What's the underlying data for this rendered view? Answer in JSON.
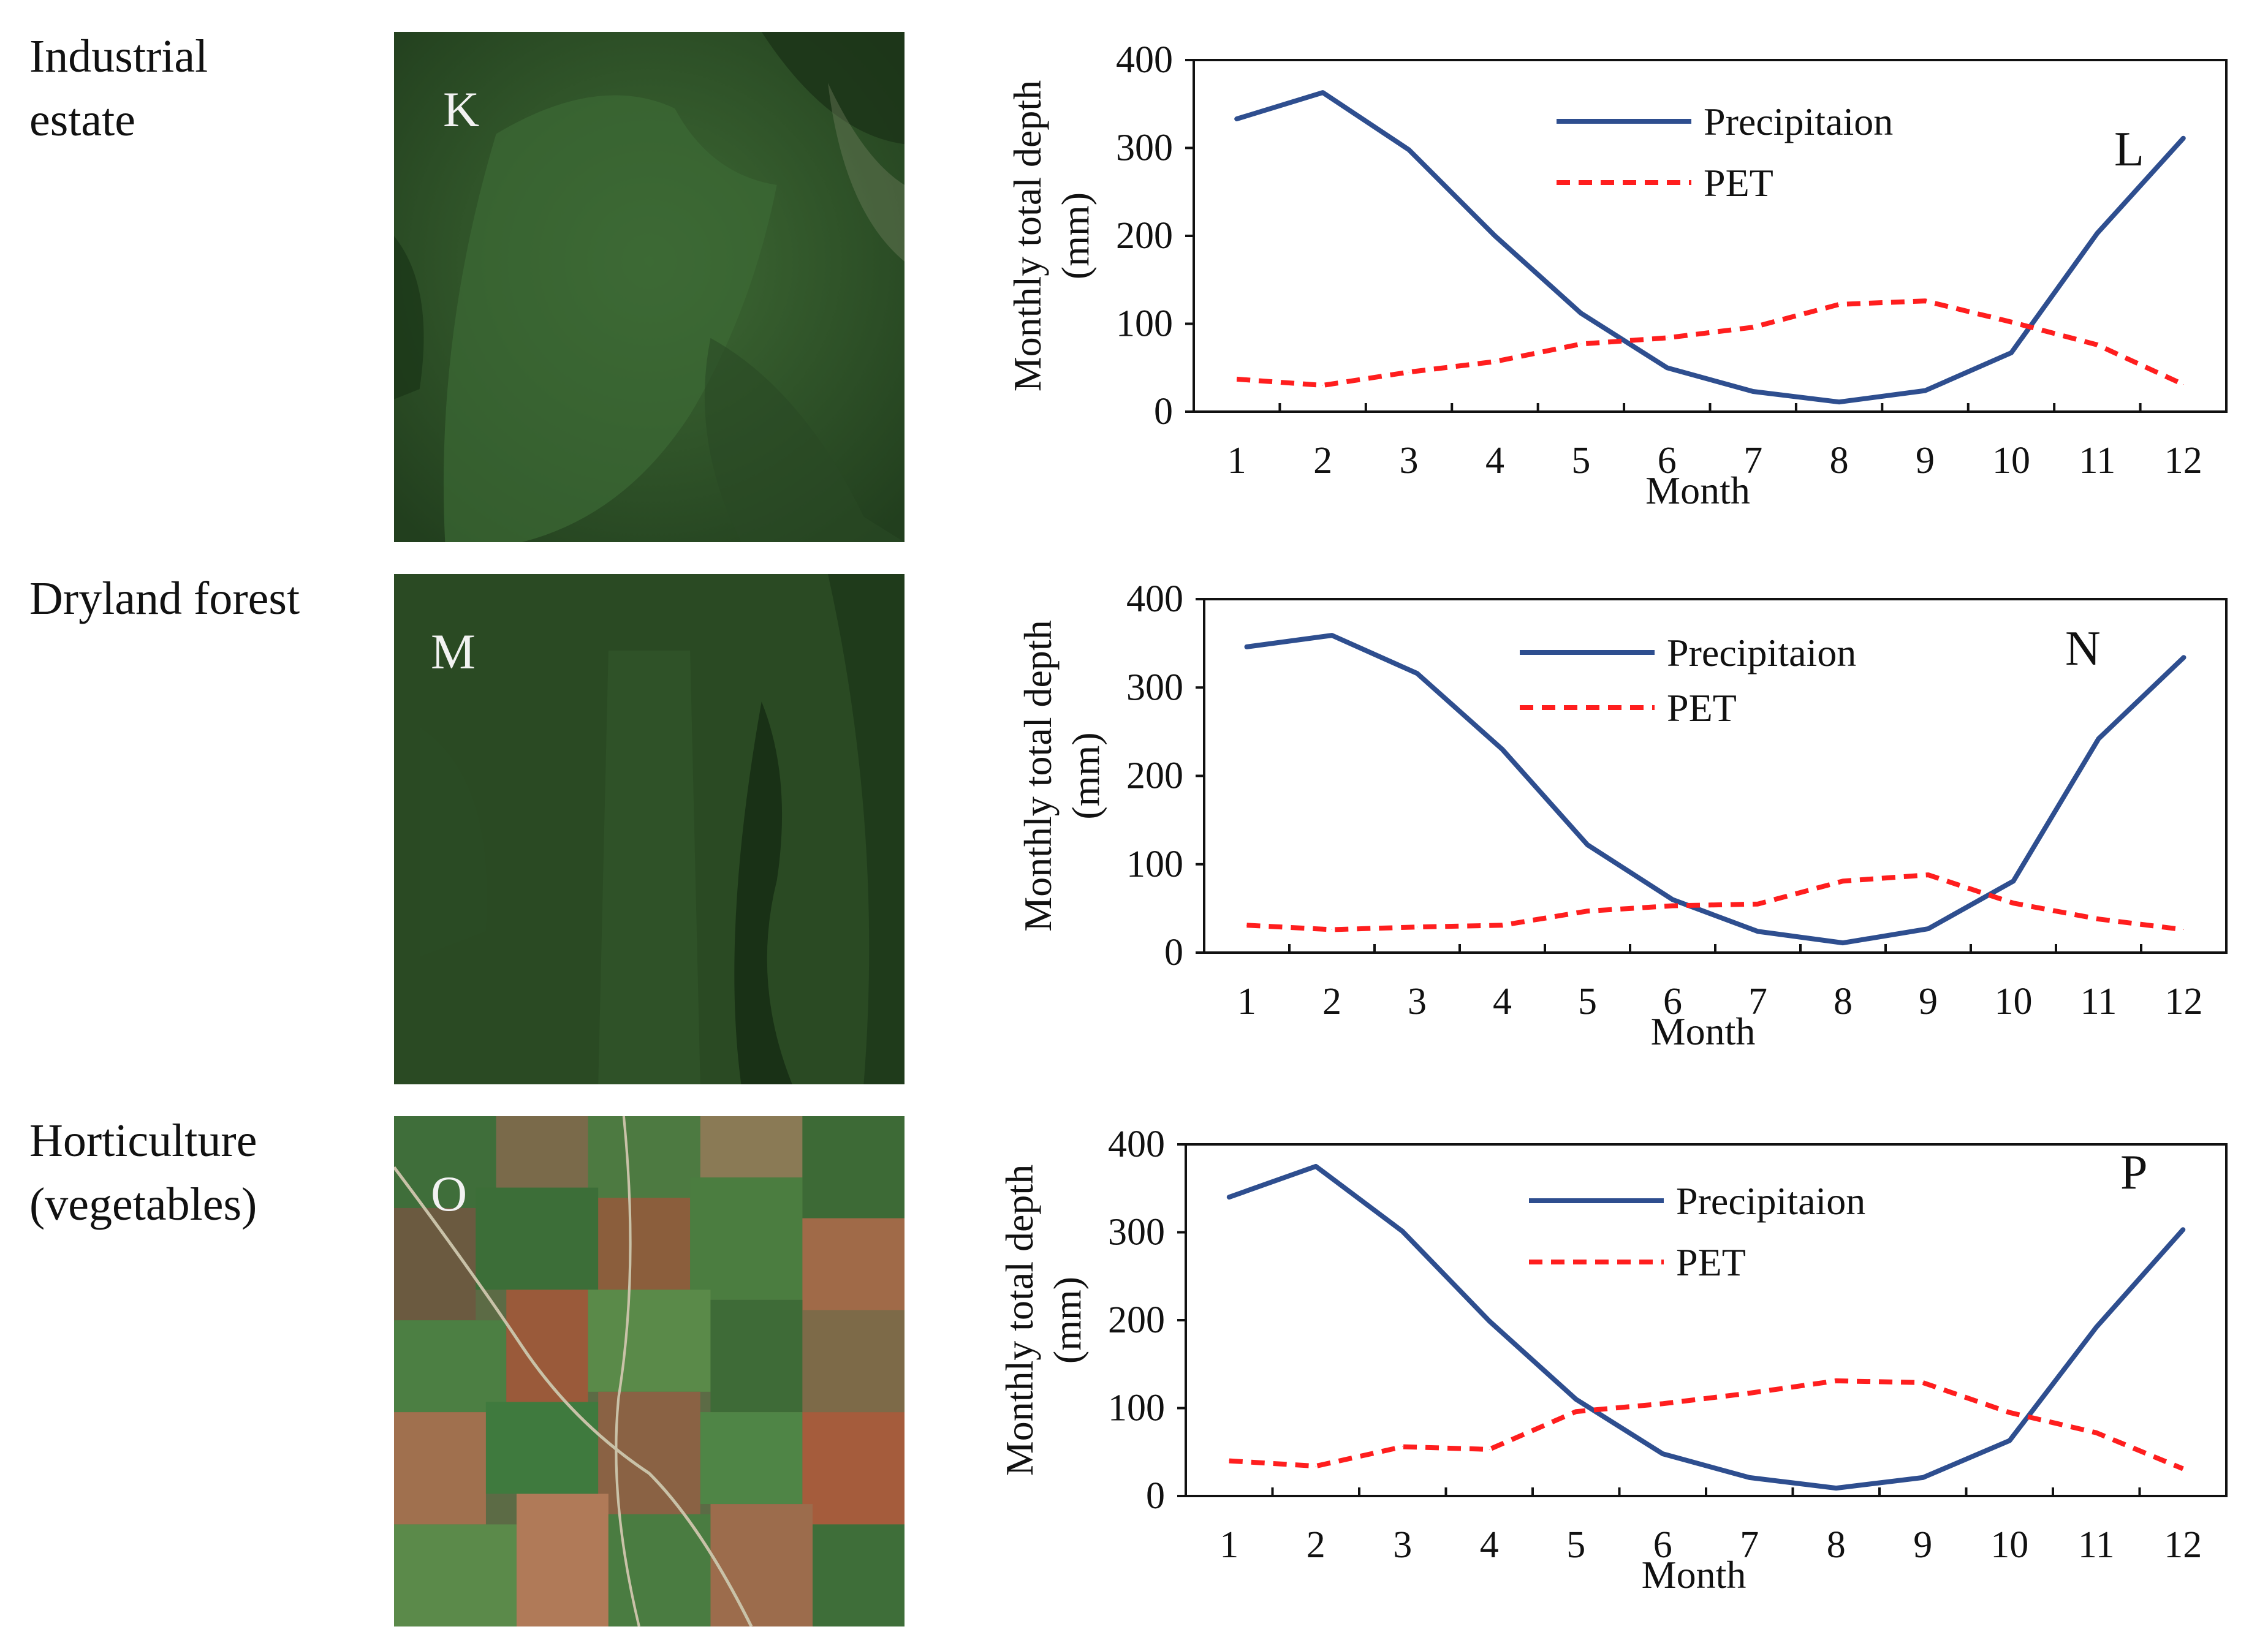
{
  "rows": [
    {
      "label": "Industrial\nestate",
      "image_letter": "K",
      "image_kind": "forest-plantation"
    },
    {
      "label": "Dryland forest",
      "image_letter": "M",
      "image_kind": "dense-forest"
    },
    {
      "label": "Horticulture\n(vegetables)",
      "image_letter": "O",
      "image_kind": "cropland"
    }
  ],
  "chart_data": [
    {
      "type": "line",
      "panel_letter": "L",
      "xlabel": "Month",
      "ylabel": "Monthly total depth (mm)",
      "ylim": [
        0,
        400
      ],
      "yticks": [
        0,
        100,
        200,
        300,
        400
      ],
      "x": [
        1,
        2,
        3,
        4,
        5,
        6,
        7,
        8,
        9,
        10,
        11,
        12
      ],
      "series": [
        {
          "name": "Precipitaion",
          "color": "#2e4e8f",
          "dash": "solid",
          "values": [
            333,
            363,
            298,
            200,
            112,
            50,
            23,
            11,
            24,
            67,
            203,
            311
          ]
        },
        {
          "name": "PET",
          "color": "#ff1e1e",
          "dash": "dashed",
          "values": [
            37,
            30,
            45,
            57,
            77,
            84,
            96,
            122,
            126,
            102,
            76,
            31
          ]
        }
      ]
    },
    {
      "type": "line",
      "panel_letter": "N",
      "xlabel": "Month",
      "ylabel": "Monthly total depth (mm)",
      "ylim": [
        0,
        400
      ],
      "yticks": [
        0,
        100,
        200,
        300,
        400
      ],
      "x": [
        1,
        2,
        3,
        4,
        5,
        6,
        7,
        8,
        9,
        10,
        11,
        12
      ],
      "series": [
        {
          "name": "Precipitaion",
          "color": "#2e4e8f",
          "dash": "solid",
          "values": [
            346,
            359,
            316,
            230,
            122,
            60,
            24,
            11,
            27,
            81,
            242,
            334
          ]
        },
        {
          "name": "PET",
          "color": "#ff1e1e",
          "dash": "dashed",
          "values": [
            31,
            26,
            29,
            31,
            47,
            53,
            55,
            81,
            88,
            56,
            38,
            26
          ]
        }
      ]
    },
    {
      "type": "line",
      "panel_letter": "P",
      "xlabel": "Month",
      "ylabel": "Monthly total depth (mm)",
      "ylim": [
        0,
        400
      ],
      "yticks": [
        0,
        100,
        200,
        300,
        400
      ],
      "x": [
        1,
        2,
        3,
        4,
        5,
        6,
        7,
        8,
        9,
        10,
        11,
        12
      ],
      "series": [
        {
          "name": "Precipitaion",
          "color": "#2e4e8f",
          "dash": "solid",
          "values": [
            340,
            375,
            301,
            199,
            110,
            48,
            21,
            9,
            21,
            63,
            192,
            303
          ]
        },
        {
          "name": "PET",
          "color": "#ff1e1e",
          "dash": "dashed",
          "values": [
            40,
            34,
            56,
            53,
            96,
            105,
            117,
            131,
            129,
            95,
            72,
            31
          ]
        }
      ]
    }
  ]
}
